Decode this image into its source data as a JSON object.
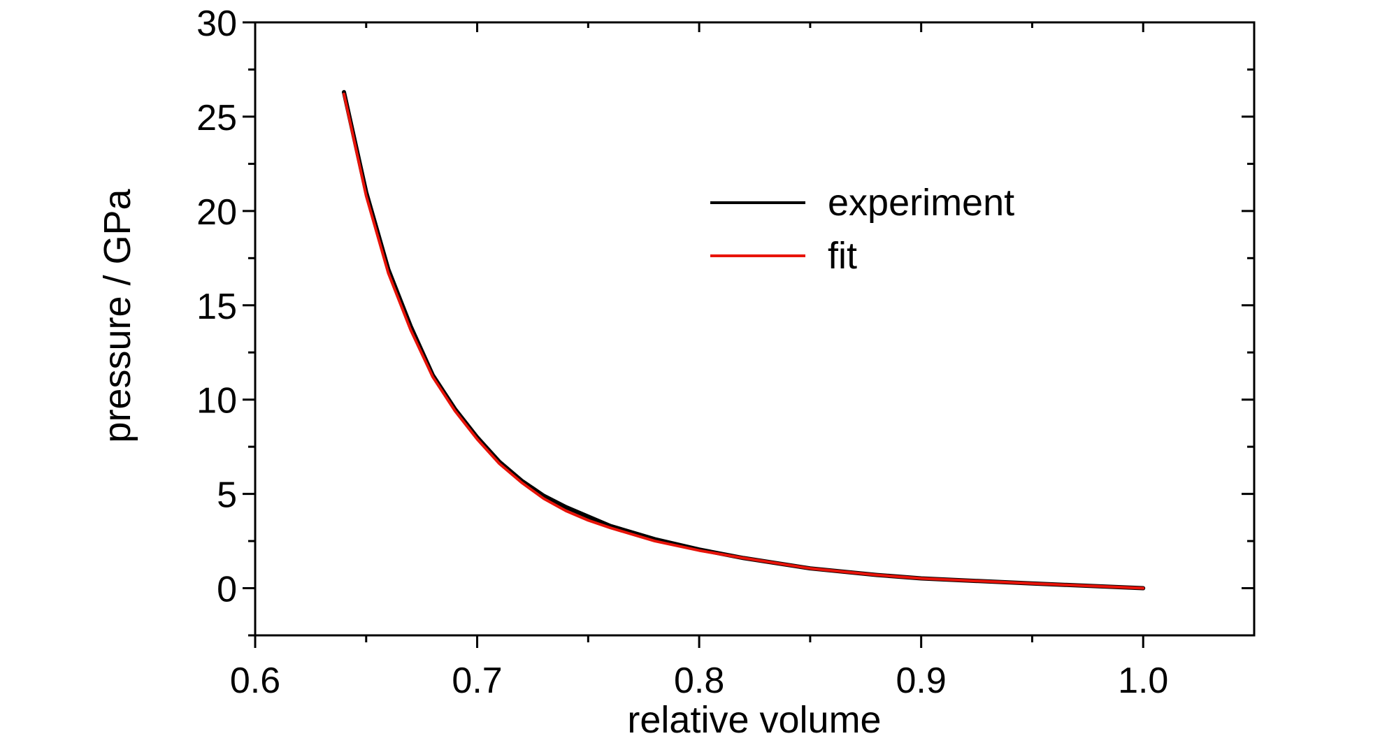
{
  "chart_data": {
    "type": "line",
    "xlabel": "relative volume",
    "ylabel": "pressure / GPa",
    "xlim": [
      0.6,
      1.05
    ],
    "ylim": [
      -2.5,
      30
    ],
    "x_ticks": [
      0.6,
      0.7,
      0.8,
      0.9,
      1.0
    ],
    "x_tick_labels": [
      "0.6",
      "0.7",
      "0.8",
      "0.9",
      "1.0"
    ],
    "y_ticks": [
      0,
      5,
      10,
      15,
      20,
      25,
      30
    ],
    "y_tick_labels": [
      "0",
      "5",
      "10",
      "15",
      "20",
      "25",
      "30"
    ],
    "legend_position": "upper-right",
    "grid": false,
    "series": [
      {
        "name": "experiment",
        "color": "#000000",
        "x": [
          0.64,
          0.65,
          0.66,
          0.67,
          0.68,
          0.69,
          0.7,
          0.71,
          0.72,
          0.73,
          0.74,
          0.75,
          0.76,
          0.78,
          0.8,
          0.82,
          0.85,
          0.88,
          0.9,
          0.95,
          1.0
        ],
        "y": [
          26.3,
          21.0,
          16.9,
          13.9,
          11.3,
          9.5,
          8.0,
          6.7,
          5.7,
          4.9,
          4.3,
          3.8,
          3.3,
          2.6,
          2.05,
          1.6,
          1.05,
          0.7,
          0.52,
          0.25,
          0.0
        ]
      },
      {
        "name": "fit",
        "color": "#e8140a",
        "x": [
          0.64,
          0.65,
          0.66,
          0.67,
          0.68,
          0.69,
          0.7,
          0.71,
          0.72,
          0.73,
          0.74,
          0.75,
          0.76,
          0.78,
          0.8,
          0.82,
          0.85,
          0.88,
          0.9,
          0.95,
          1.0
        ],
        "y": [
          26.2,
          20.8,
          16.7,
          13.7,
          11.2,
          9.4,
          7.9,
          6.6,
          5.6,
          4.75,
          4.1,
          3.6,
          3.2,
          2.5,
          2.0,
          1.6,
          1.05,
          0.7,
          0.52,
          0.25,
          0.0
        ]
      }
    ]
  }
}
